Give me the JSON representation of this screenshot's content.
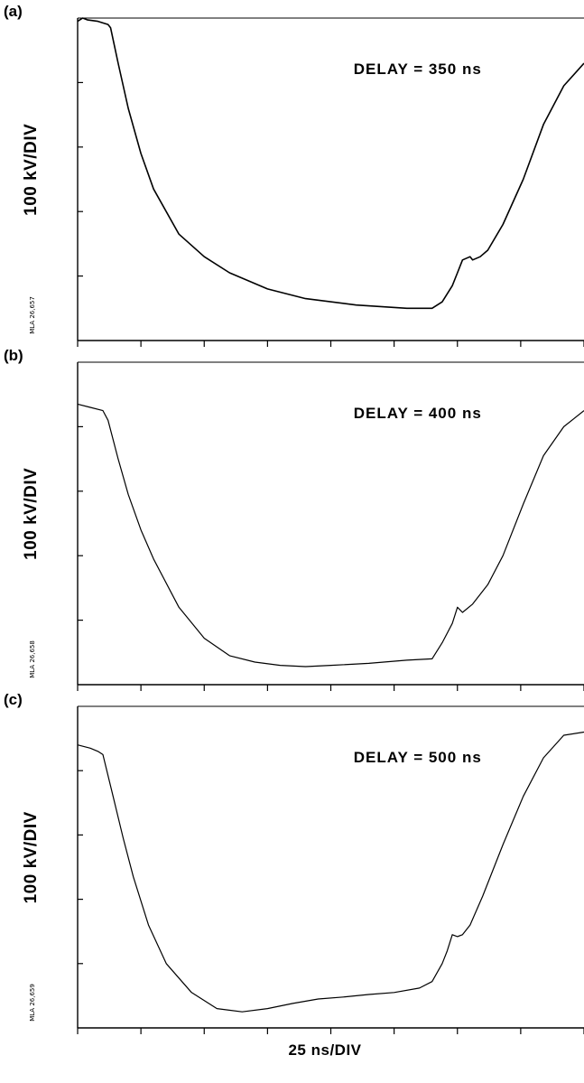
{
  "figure": {
    "x_axis_label": "25 ns/DIV"
  },
  "chart_data": [
    {
      "type": "line",
      "panel": "(a)",
      "annotation": "DELAY = 350 ns",
      "ylabel": "100 kV/DIV",
      "side_code": "MLA 26,657",
      "xlabel": "25 ns/DIV",
      "xlim": [
        0,
        200
      ],
      "ylim": [
        0,
        5
      ],
      "x_major_divisions": 8,
      "y_major_divisions": 5,
      "grid": false,
      "series": [
        {
          "x": [
            0,
            2,
            4,
            8,
            12,
            13,
            16,
            20,
            25,
            30,
            40,
            50,
            60,
            75,
            90,
            110,
            130,
            140,
            144,
            148,
            150,
            152,
            155,
            156,
            159,
            162,
            168,
            176,
            184,
            192,
            200
          ],
          "y": [
            4.95,
            5.0,
            4.97,
            4.95,
            4.9,
            4.85,
            4.3,
            3.6,
            2.9,
            2.35,
            1.65,
            1.3,
            1.05,
            0.8,
            0.65,
            0.55,
            0.5,
            0.5,
            0.6,
            0.85,
            1.05,
            1.25,
            1.3,
            1.25,
            1.3,
            1.4,
            1.8,
            2.5,
            3.35,
            3.95,
            4.3
          ]
        }
      ]
    },
    {
      "type": "line",
      "panel": "(b)",
      "annotation": "DELAY = 400 ns",
      "ylabel": "100 kV/DIV",
      "side_code": "MLA 26,658",
      "xlabel": "25 ns/DIV",
      "xlim": [
        0,
        200
      ],
      "ylim": [
        0,
        5
      ],
      "x_major_divisions": 8,
      "y_major_divisions": 5,
      "grid": false,
      "series": [
        {
          "x": [
            0,
            5,
            10,
            12,
            16,
            20,
            25,
            30,
            40,
            50,
            60,
            70,
            80,
            90,
            100,
            115,
            130,
            140,
            144,
            148,
            150,
            152,
            156,
            162,
            168,
            176,
            184,
            192,
            200
          ],
          "y": [
            4.35,
            4.3,
            4.25,
            4.1,
            3.5,
            2.95,
            2.4,
            1.95,
            1.2,
            0.72,
            0.45,
            0.35,
            0.3,
            0.28,
            0.3,
            0.33,
            0.38,
            0.4,
            0.65,
            0.95,
            1.2,
            1.12,
            1.25,
            1.55,
            2.0,
            2.8,
            3.55,
            4.0,
            4.25
          ]
        }
      ]
    },
    {
      "type": "line",
      "panel": "(c)",
      "annotation": "DELAY = 500 ns",
      "ylabel": "100 kV/DIV",
      "side_code": "MLA 26,659",
      "xlabel": "25 ns/DIV",
      "xlim": [
        0,
        200
      ],
      "ylim": [
        0,
        5
      ],
      "x_major_divisions": 8,
      "y_major_divisions": 5,
      "grid": false,
      "series": [
        {
          "x": [
            0,
            5,
            8,
            10,
            14,
            18,
            22,
            28,
            35,
            45,
            55,
            65,
            75,
            85,
            95,
            105,
            115,
            125,
            135,
            140,
            144,
            146,
            148,
            150,
            152,
            155,
            160,
            168,
            176,
            184,
            192,
            200
          ],
          "y": [
            4.4,
            4.35,
            4.3,
            4.25,
            3.6,
            2.95,
            2.35,
            1.6,
            1.0,
            0.55,
            0.3,
            0.25,
            0.3,
            0.38,
            0.45,
            0.48,
            0.52,
            0.55,
            0.62,
            0.72,
            1.0,
            1.2,
            1.45,
            1.42,
            1.45,
            1.6,
            2.05,
            2.85,
            3.6,
            4.2,
            4.55,
            4.6
          ]
        }
      ]
    }
  ]
}
